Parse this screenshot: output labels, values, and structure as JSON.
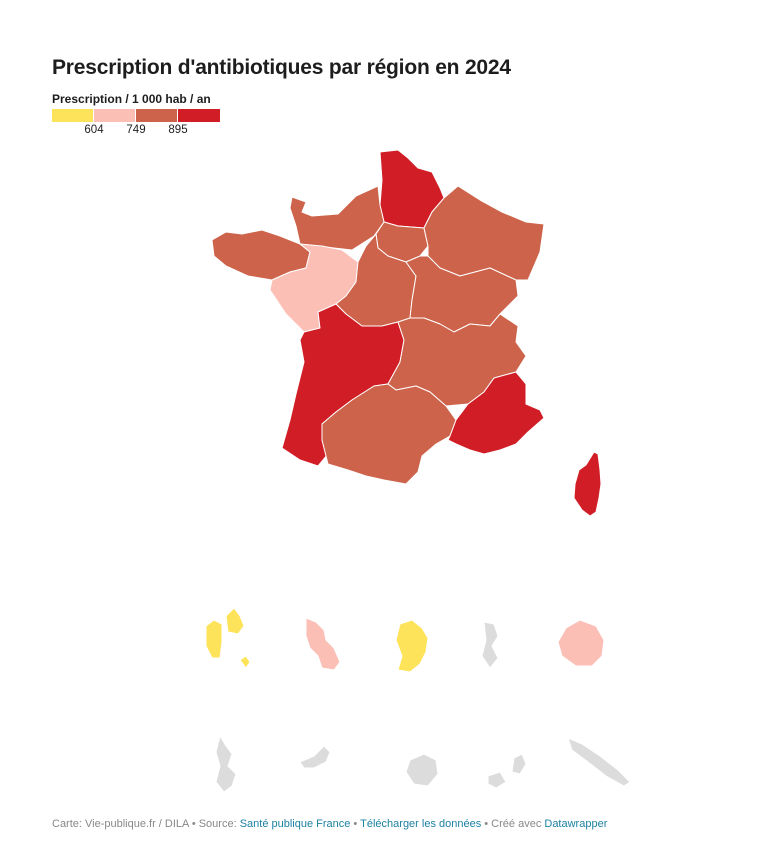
{
  "title": "Prescription d'antibiotiques par région en 2024",
  "legend": {
    "title": "Prescription / 1 000 hab / an",
    "colors": [
      "#fde35a",
      "#fbbfb6",
      "#cc634a",
      "#d11e26"
    ],
    "thresholds": [
      "604",
      "749",
      "895"
    ]
  },
  "regions": {
    "hauts-de-france": "#d11e26",
    "normandie": "#cc634a",
    "bretagne": "#cc634a",
    "pays-de-la-loire": "#fbbfb6",
    "ile-de-france": "#cc634a",
    "grand-est": "#cc634a",
    "centre-val-de-loire": "#cc634a",
    "bourgogne-franche-comte": "#cc634a",
    "nouvelle-aquitaine": "#d11e26",
    "auvergne-rhone-alpes": "#cc634a",
    "occitanie": "#cc634a",
    "provence-alpes-cote-dazur": "#d11e26",
    "corse": "#d11e26",
    "guadeloupe": "#fde35a",
    "martinique": "#fbbfb6",
    "guyane": "#fde35a",
    "mayotte": "#dcdcdc",
    "la-reunion": "#fbbfb6",
    "no-data": "#dcdcdc"
  },
  "footer": {
    "prefix": "Carte: Vie-publique.fr / DILA • Source: ",
    "source_link": "Santé publique France",
    "sep1": " • ",
    "download_link": "Télécharger les données",
    "sep2": " • Créé avec ",
    "tool_link": "Datawrapper"
  }
}
